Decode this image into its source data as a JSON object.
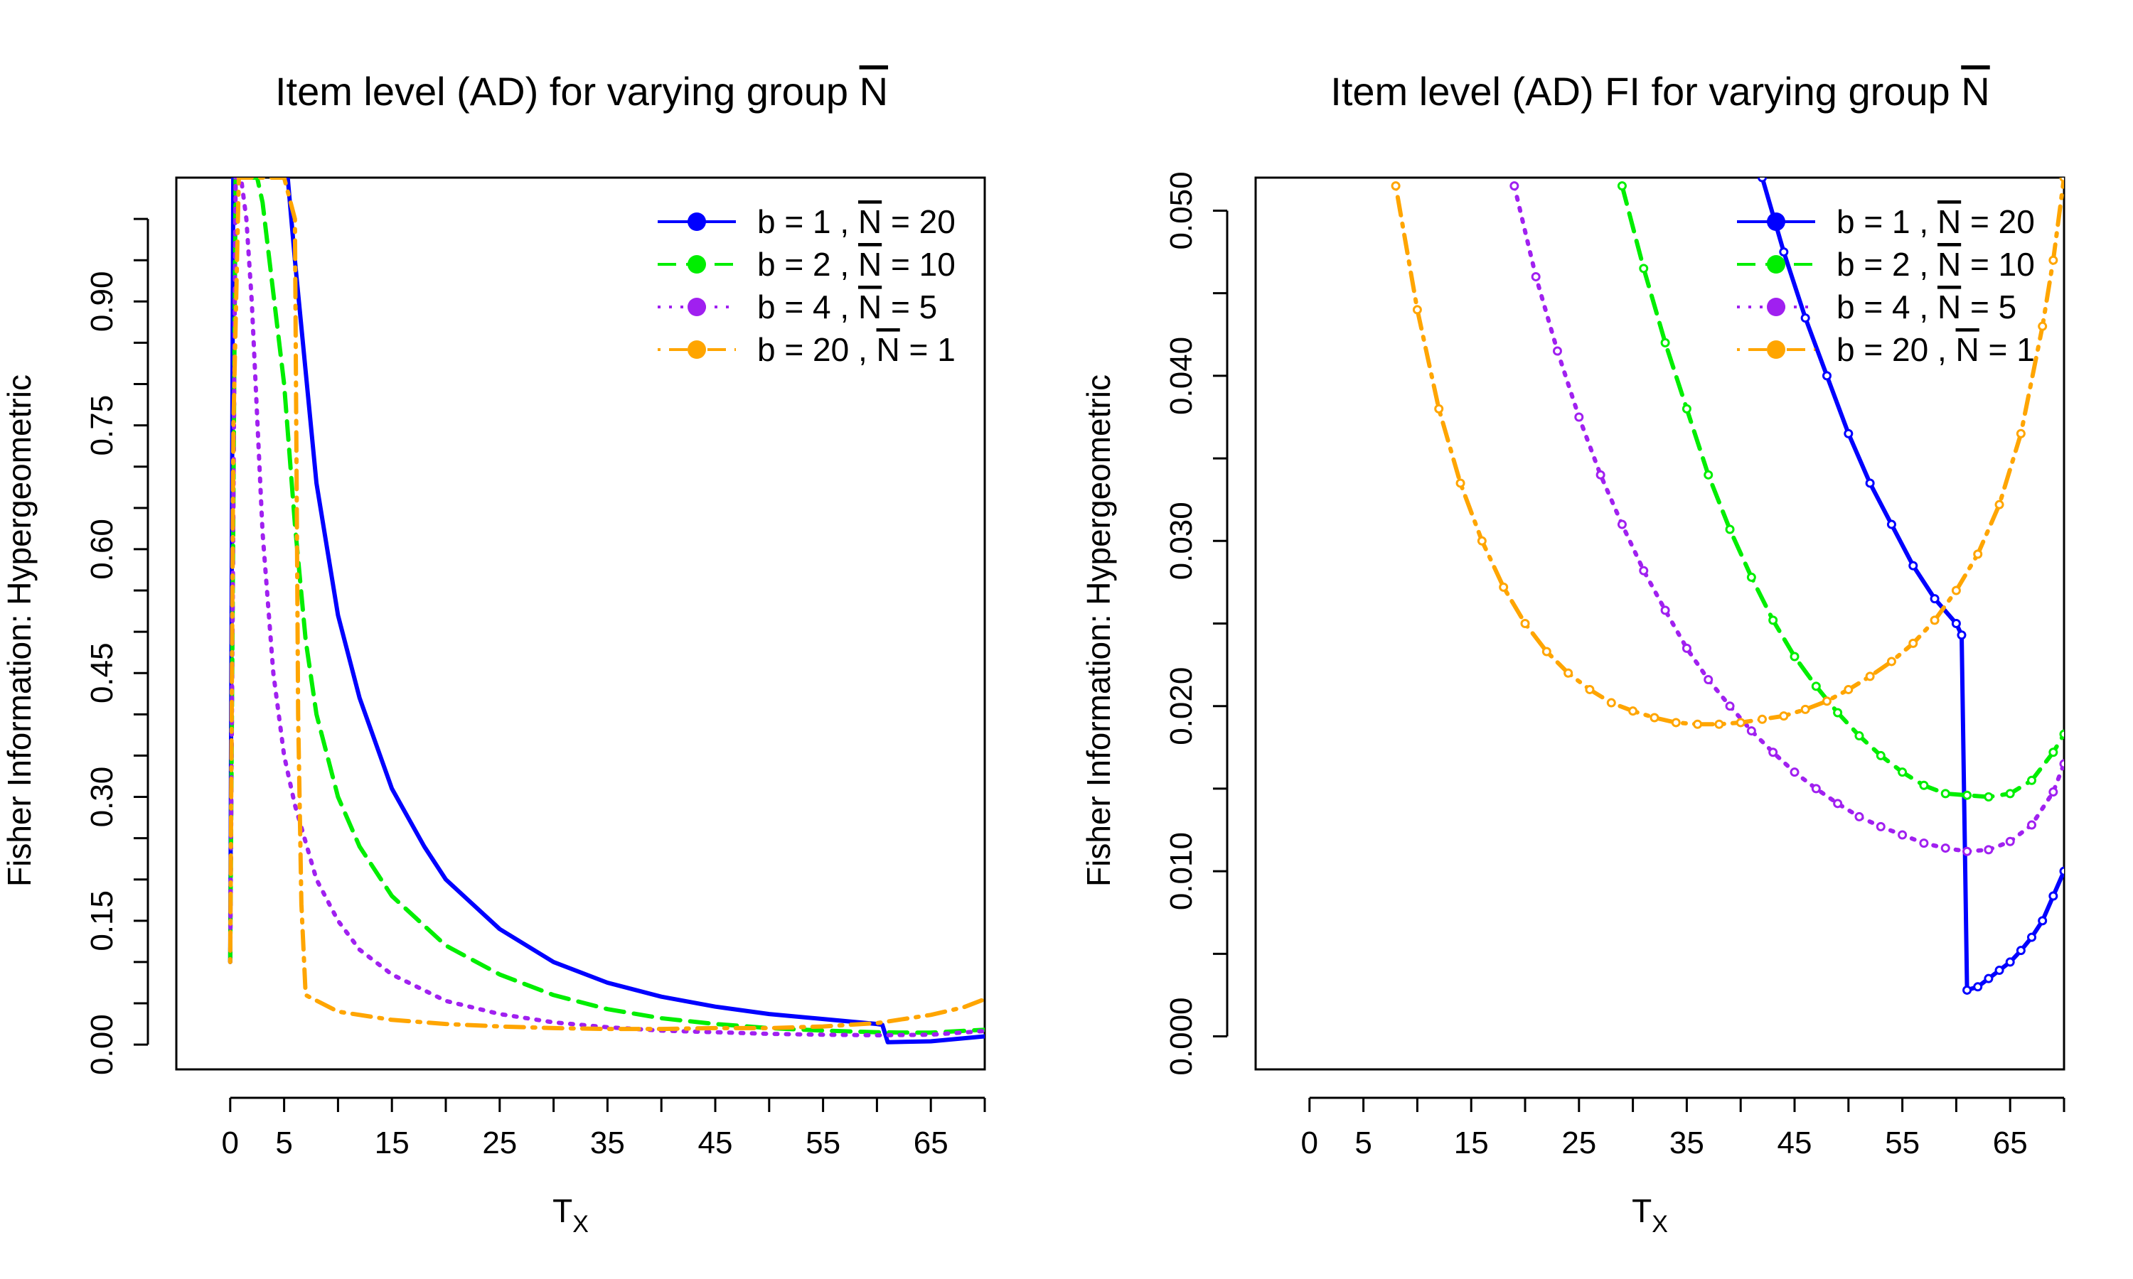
{
  "figure": {
    "titles": [
      "Item level (AD) for varying group N",
      "Item level (AD) FI for varying group N"
    ]
  },
  "legend": [
    {
      "b": "1",
      "N": "20"
    },
    {
      "b": "2",
      "N": "10"
    },
    {
      "b": "4",
      "N": "5"
    },
    {
      "b": "20",
      "N": "1"
    }
  ],
  "chart_data": [
    {
      "type": "line",
      "title": "Item level (AD) for varying group N",
      "xlabel": "T_X",
      "ylabel": "Fisher Information: Hypergeometric",
      "xlim": [
        -5,
        70
      ],
      "ylim": [
        -0.03,
        1.05
      ],
      "x_ticks": [
        0,
        5,
        15,
        25,
        35,
        45,
        55,
        65
      ],
      "x_tick_labels": [
        "0",
        "5",
        "15",
        "25",
        "35",
        "45",
        "55",
        "65"
      ],
      "y_ticks": [
        0.0,
        0.15,
        0.3,
        0.45,
        0.6,
        0.75,
        0.9
      ],
      "y_tick_labels": [
        "0.00",
        "0.15",
        "0.30",
        "0.45",
        "0.60",
        "0.75",
        "0.90"
      ],
      "y_minor_ticks": [
        0.05,
        0.1,
        0.2,
        0.25,
        0.35,
        0.4,
        0.5,
        0.55,
        0.65,
        0.7,
        0.8,
        0.85,
        0.95,
        1.0
      ],
      "x_minor_ticks": [
        10,
        20,
        30,
        40,
        50,
        60,
        70
      ],
      "legend_position": "top-right",
      "series": [
        {
          "name": "b = 1 , N = 20",
          "color": "#0000ff",
          "dash": "solid",
          "x": [
            0,
            0.3,
            5,
            6,
            8,
            10,
            12,
            15,
            18,
            20,
            25,
            30,
            35,
            40,
            45,
            50,
            55,
            60,
            60.5,
            61,
            65,
            70
          ],
          "y": [
            0.1,
            1.1,
            1.1,
            0.95,
            0.68,
            0.52,
            0.42,
            0.31,
            0.24,
            0.2,
            0.14,
            0.1,
            0.075,
            0.058,
            0.046,
            0.037,
            0.031,
            0.025,
            0.024,
            0.003,
            0.004,
            0.01
          ]
        },
        {
          "name": "b = 2 , N = 10",
          "color": "#00ee00",
          "dash": "dashed",
          "x": [
            0,
            0.5,
            1.5,
            2.5,
            3.0,
            5,
            6,
            7,
            8,
            10,
            12,
            15,
            20,
            25,
            30,
            35,
            40,
            45,
            50,
            55,
            60,
            62,
            65,
            70
          ],
          "y": [
            0.1,
            1.05,
            1.05,
            1.05,
            1.02,
            0.8,
            0.63,
            0.49,
            0.4,
            0.3,
            0.24,
            0.18,
            0.12,
            0.085,
            0.06,
            0.043,
            0.032,
            0.025,
            0.02,
            0.017,
            0.015,
            0.0147,
            0.0145,
            0.018
          ]
        },
        {
          "name": "b = 4 , N = 5",
          "color": "#a020f0",
          "dash": "dotted",
          "x": [
            0,
            0.5,
            1,
            1.5,
            2,
            3,
            4,
            5,
            6,
            8,
            10,
            12,
            15,
            20,
            25,
            30,
            35,
            40,
            45,
            50,
            55,
            60,
            65,
            70
          ],
          "y": [
            0.1,
            1.05,
            1.05,
            1.0,
            0.9,
            0.62,
            0.45,
            0.35,
            0.29,
            0.2,
            0.15,
            0.115,
            0.085,
            0.053,
            0.037,
            0.027,
            0.021,
            0.017,
            0.015,
            0.013,
            0.012,
            0.0113,
            0.012,
            0.0165
          ]
        },
        {
          "name": "b = 20 , N = 1",
          "color": "#ffa500",
          "dash": "dotdash",
          "x": [
            0,
            0.3,
            0.8,
            1.5,
            2,
            3,
            4,
            5,
            6,
            6.3,
            6.6,
            7,
            10,
            15,
            20,
            25,
            30,
            35,
            40,
            45,
            50,
            55,
            60,
            65,
            68,
            70
          ],
          "y": [
            0.1,
            0.75,
            1.05,
            1.05,
            1.05,
            1.05,
            1.05,
            1.05,
            1.0,
            0.4,
            0.17,
            0.06,
            0.04,
            0.03,
            0.025,
            0.022,
            0.02,
            0.019,
            0.019,
            0.02,
            0.02,
            0.022,
            0.026,
            0.036,
            0.045,
            0.055
          ]
        }
      ]
    },
    {
      "type": "line",
      "title": "Item level (AD) FI for varying group N",
      "xlabel": "T_X",
      "ylabel": "Fisher Information: Hypergeometric",
      "xlim": [
        -5,
        70
      ],
      "ylim": [
        -0.002,
        0.052
      ],
      "x_ticks": [
        0,
        5,
        15,
        25,
        35,
        45,
        55,
        65
      ],
      "x_tick_labels": [
        "0",
        "5",
        "15",
        "25",
        "35",
        "45",
        "55",
        "65"
      ],
      "y_ticks": [
        0.0,
        0.01,
        0.02,
        0.03,
        0.04,
        0.05
      ],
      "y_tick_labels": [
        "0.000",
        "0.010",
        "0.020",
        "0.030",
        "0.040",
        "0.050"
      ],
      "y_minor_ticks": [
        0.005,
        0.015,
        0.025,
        0.035,
        0.045
      ],
      "x_minor_ticks": [
        10,
        20,
        30,
        40,
        50,
        60,
        70
      ],
      "legend_position": "top-right",
      "series": [
        {
          "name": "b = 1 , N = 20",
          "color": "#0000ff",
          "dash": "solid",
          "x": [
            42,
            44,
            46,
            48,
            50,
            52,
            54,
            56,
            58,
            60,
            60.5,
            61,
            62,
            63,
            64,
            65,
            66,
            67,
            68,
            69,
            70
          ],
          "y": [
            0.052,
            0.0475,
            0.0435,
            0.04,
            0.0365,
            0.0335,
            0.031,
            0.0285,
            0.0265,
            0.025,
            0.0243,
            0.0028,
            0.003,
            0.0035,
            0.004,
            0.0045,
            0.0052,
            0.006,
            0.007,
            0.0085,
            0.01
          ]
        },
        {
          "name": "b = 2 , N = 10",
          "color": "#00ee00",
          "dash": "dashed",
          "x": [
            29,
            31,
            33,
            35,
            37,
            39,
            41,
            43,
            45,
            47,
            49,
            51,
            53,
            55,
            57,
            59,
            61,
            63,
            65,
            67,
            69,
            70
          ],
          "y": [
            0.0515,
            0.0465,
            0.042,
            0.038,
            0.034,
            0.0307,
            0.0278,
            0.0252,
            0.023,
            0.0212,
            0.0196,
            0.0182,
            0.017,
            0.016,
            0.0152,
            0.0147,
            0.0146,
            0.0145,
            0.0147,
            0.0155,
            0.0172,
            0.0183
          ]
        },
        {
          "name": "b = 4 , N = 5",
          "color": "#a020f0",
          "dash": "dotted",
          "x": [
            19,
            21,
            23,
            25,
            27,
            29,
            31,
            33,
            35,
            37,
            39,
            41,
            43,
            45,
            47,
            49,
            51,
            53,
            55,
            57,
            59,
            61,
            63,
            65,
            67,
            69,
            70
          ],
          "y": [
            0.0515,
            0.046,
            0.0415,
            0.0375,
            0.034,
            0.031,
            0.0282,
            0.0258,
            0.0235,
            0.0216,
            0.02,
            0.0185,
            0.0172,
            0.016,
            0.015,
            0.0141,
            0.0133,
            0.0127,
            0.0122,
            0.0117,
            0.0114,
            0.0112,
            0.0113,
            0.0118,
            0.0128,
            0.0148,
            0.0165
          ]
        },
        {
          "name": "b = 20 , N = 1",
          "color": "#ffa500",
          "dash": "dotdash",
          "x": [
            8,
            10,
            12,
            14,
            16,
            18,
            20,
            22,
            24,
            26,
            28,
            30,
            32,
            34,
            36,
            38,
            40,
            42,
            44,
            46,
            48,
            50,
            52,
            54,
            56,
            58,
            60,
            62,
            64,
            66,
            68,
            69,
            70
          ],
          "y": [
            0.0515,
            0.044,
            0.038,
            0.0335,
            0.03,
            0.0272,
            0.025,
            0.0233,
            0.022,
            0.021,
            0.0202,
            0.0197,
            0.0193,
            0.019,
            0.0189,
            0.0189,
            0.019,
            0.0192,
            0.0194,
            0.0198,
            0.0203,
            0.021,
            0.0218,
            0.0227,
            0.0238,
            0.0252,
            0.027,
            0.0292,
            0.0322,
            0.0365,
            0.043,
            0.047,
            0.052
          ]
        }
      ]
    }
  ]
}
